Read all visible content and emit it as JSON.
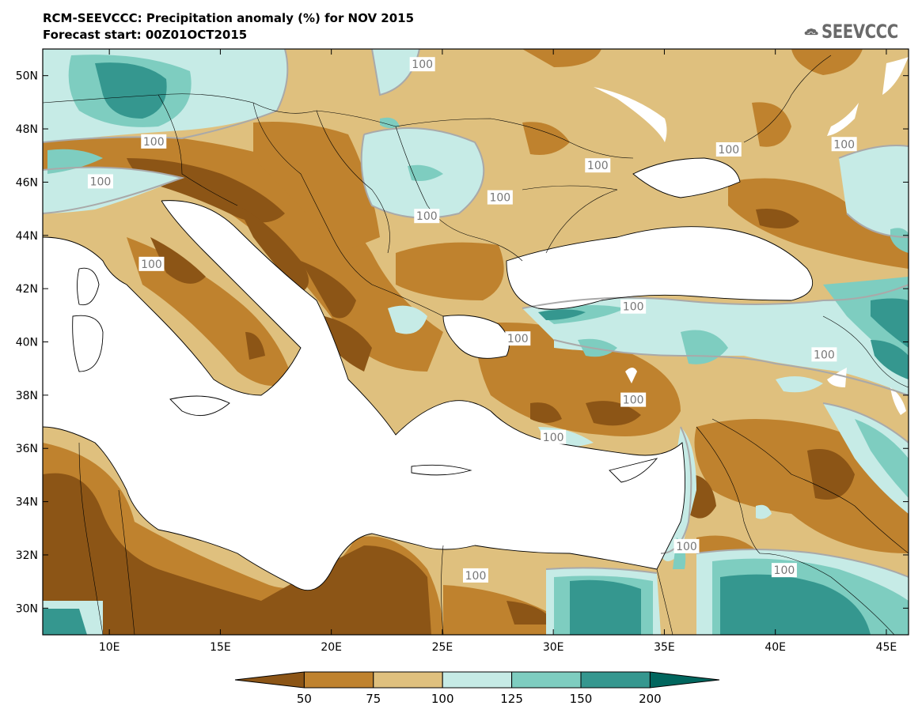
{
  "header": {
    "title": "RCM-SEEVCCC: Precipitation anomaly (%) for NOV 2015",
    "subtitle": "Forecast start: 00Z01OCT2015",
    "logo_text": "SEEVCCC",
    "logo_icon": "cloud-icon"
  },
  "map": {
    "lon_range": [
      7,
      46
    ],
    "lat_range": [
      29,
      51
    ],
    "x_ticks": [
      "10E",
      "15E",
      "20E",
      "25E",
      "30E",
      "35E",
      "40E",
      "45E"
    ],
    "x_tick_values": [
      10,
      15,
      20,
      25,
      30,
      35,
      40,
      45
    ],
    "y_ticks": [
      "30N",
      "32N",
      "34N",
      "36N",
      "38N",
      "40N",
      "42N",
      "44N",
      "46N",
      "48N",
      "50N"
    ],
    "y_tick_values": [
      30,
      32,
      34,
      36,
      38,
      40,
      42,
      44,
      46,
      48,
      50
    ],
    "contour_labels": [
      {
        "text": "100",
        "lon": 24.1,
        "lat": 50.4
      },
      {
        "text": "100",
        "lon": 12.0,
        "lat": 47.5
      },
      {
        "text": "100",
        "lon": 9.6,
        "lat": 46.0
      },
      {
        "text": "100",
        "lon": 11.9,
        "lat": 42.9
      },
      {
        "text": "100",
        "lon": 27.6,
        "lat": 45.4
      },
      {
        "text": "100",
        "lon": 24.3,
        "lat": 44.7
      },
      {
        "text": "100",
        "lon": 32.0,
        "lat": 46.6
      },
      {
        "text": "100",
        "lon": 37.9,
        "lat": 47.2
      },
      {
        "text": "100",
        "lon": 43.1,
        "lat": 47.4
      },
      {
        "text": "100",
        "lon": 33.6,
        "lat": 41.3
      },
      {
        "text": "100",
        "lon": 28.4,
        "lat": 40.1
      },
      {
        "text": "100",
        "lon": 33.6,
        "lat": 37.8
      },
      {
        "text": "100",
        "lon": 42.2,
        "lat": 39.5
      },
      {
        "text": "100",
        "lon": 30.0,
        "lat": 36.4
      },
      {
        "text": "100",
        "lon": 36.0,
        "lat": 32.3
      },
      {
        "text": "100",
        "lon": 40.4,
        "lat": 31.4
      },
      {
        "text": "100",
        "lon": 26.5,
        "lat": 31.2
      }
    ]
  },
  "colorbar": {
    "ticks": [
      "50",
      "75",
      "100",
      "125",
      "150",
      "200"
    ],
    "colors": [
      "#8c5516",
      "#bf822e",
      "#dfc07e",
      "#c6ebe6",
      "#7ecdc0",
      "#35978f",
      "#01665e"
    ]
  },
  "colors": {
    "dry_strong": "#8c5516",
    "dry": "#bf822e",
    "dry_light": "#dfc07e",
    "wet_light": "#c6ebe6",
    "wet": "#7ecdc0",
    "wet_strong": "#35978f",
    "wet_very_strong": "#01665e",
    "contour_100": "#a9a9a9",
    "sea": "#ffffff"
  }
}
